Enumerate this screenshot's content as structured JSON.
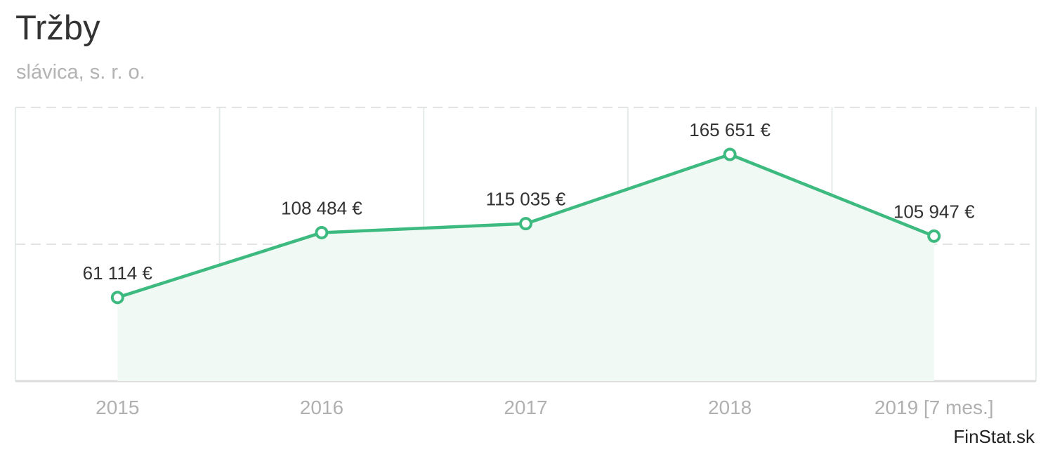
{
  "title": "Tržby",
  "subtitle": "slávica, s. r. o.",
  "credit": "FinStat.sk",
  "colors": {
    "line": "#3dba7f",
    "area": "#f1f9f5",
    "grid": "#e3e3e3",
    "title": "#333333",
    "muted": "#b3b3b3"
  },
  "chart_data": {
    "type": "area",
    "categories": [
      "2015",
      "2016",
      "2017",
      "2018",
      "2019 [7 mes.]"
    ],
    "values": [
      61114,
      108484,
      115035,
      165651,
      105947
    ],
    "data_labels": [
      "61 114 €",
      "108 484 €",
      "115 035 €",
      "165 651 €",
      "105 947 €"
    ],
    "title": "Tržby",
    "subtitle": "slávica, s. r. o.",
    "xlabel": "",
    "ylabel": "",
    "ylim": [
      0,
      200000
    ],
    "grid": true,
    "legend": "none"
  }
}
